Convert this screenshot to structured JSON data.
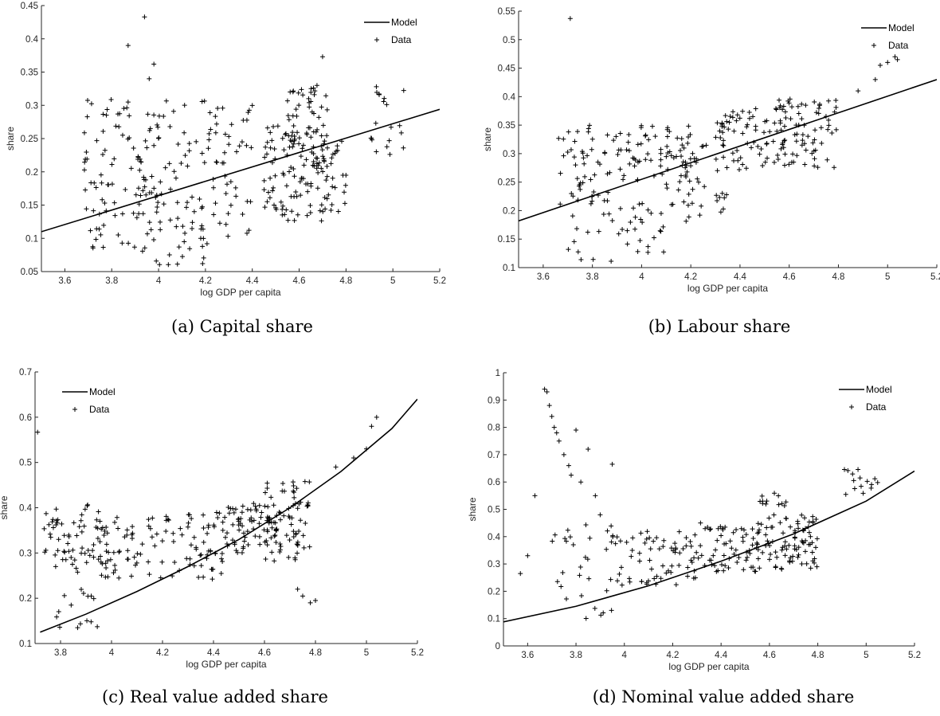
{
  "chart_data": [
    {
      "type": "scatter",
      "caption": "(a) Capital share",
      "xlabel": "log GDP per capita",
      "ylabel": "share",
      "xlim": [
        3.5,
        5.2
      ],
      "ylim": [
        0.05,
        0.45
      ],
      "xticks": [
        3.6,
        3.8,
        4,
        4.2,
        4.4,
        4.6,
        4.8,
        5,
        5.2
      ],
      "yticks": [
        0.05,
        0.1,
        0.15,
        0.2,
        0.25,
        0.3,
        0.35,
        0.4,
        0.45
      ],
      "legend": {
        "position": "top-right",
        "entries": [
          "Model",
          "Data"
        ]
      },
      "series": [
        {
          "name": "Model",
          "kind": "line",
          "x": [
            3.5,
            5.2
          ],
          "y": [
            0.11,
            0.294
          ]
        },
        {
          "name": "Data",
          "kind": "scatter",
          "marker": "+",
          "clusters": [
            {
              "x": [
                3.68,
                3.8
              ],
              "y": [
                0.07,
                0.31
              ],
              "n": 40
            },
            {
              "x": [
                3.8,
                3.98
              ],
              "y": [
                0.08,
                0.3
              ],
              "n": 60
            },
            {
              "x": [
                3.98,
                4.2
              ],
              "y": [
                0.06,
                0.31
              ],
              "n": 70
            },
            {
              "x": [
                4.2,
                4.4
              ],
              "y": [
                0.09,
                0.3
              ],
              "n": 50
            },
            {
              "x": [
                4.45,
                4.62
              ],
              "y": [
                0.12,
                0.27
              ],
              "n": 60
            },
            {
              "x": [
                4.55,
                4.72
              ],
              "y": [
                0.19,
                0.33
              ],
              "n": 70
            },
            {
              "x": [
                4.62,
                4.8
              ],
              "y": [
                0.12,
                0.26
              ],
              "n": 50
            },
            {
              "x": [
                4.9,
                5.05
              ],
              "y": [
                0.22,
                0.33
              ],
              "n": 20
            }
          ],
          "points": [
            [
              3.87,
              0.39
            ],
            [
              3.94,
              0.433
            ],
            [
              3.96,
              0.34
            ],
            [
              3.98,
              0.362
            ],
            [
              4.7,
              0.373
            ],
            [
              3.87,
              0.305
            ]
          ]
        }
      ]
    },
    {
      "type": "scatter",
      "caption": "(b) Labour share",
      "xlabel": "log GDP per capita",
      "ylabel": "share",
      "xlim": [
        3.5,
        5.2
      ],
      "ylim": [
        0.1,
        0.55
      ],
      "xticks": [
        3.6,
        3.8,
        4,
        4.2,
        4.4,
        4.6,
        4.8,
        5,
        5.2
      ],
      "yticks": [
        0.1,
        0.15,
        0.2,
        0.25,
        0.3,
        0.35,
        0.4,
        0.45,
        0.5,
        0.55
      ],
      "legend": {
        "position": "top-right",
        "entries": [
          "Model",
          "Data"
        ]
      },
      "series": [
        {
          "name": "Model",
          "kind": "line",
          "x": [
            3.5,
            5.2
          ],
          "y": [
            0.182,
            0.43
          ]
        },
        {
          "name": "Data",
          "kind": "scatter",
          "marker": "+",
          "clusters": [
            {
              "x": [
                3.66,
                3.9
              ],
              "y": [
                0.21,
                0.35
              ],
              "n": 50
            },
            {
              "x": [
                3.9,
                4.2
              ],
              "y": [
                0.25,
                0.35
              ],
              "n": 60
            },
            {
              "x": [
                3.7,
                4.1
              ],
              "y": [
                0.11,
                0.22
              ],
              "n": 40
            },
            {
              "x": [
                4.1,
                4.35
              ],
              "y": [
                0.18,
                0.32
              ],
              "n": 50
            },
            {
              "x": [
                4.3,
                4.6
              ],
              "y": [
                0.27,
                0.38
              ],
              "n": 70
            },
            {
              "x": [
                4.55,
                4.8
              ],
              "y": [
                0.27,
                0.4
              ],
              "n": 70
            }
          ],
          "points": [
            [
              3.71,
              0.537
            ],
            [
              4.88,
              0.41
            ],
            [
              4.95,
              0.43
            ],
            [
              4.97,
              0.455
            ],
            [
              5.0,
              0.46
            ],
            [
              5.03,
              0.47
            ],
            [
              5.04,
              0.465
            ]
          ]
        }
      ]
    },
    {
      "type": "scatter",
      "caption": "(c) Real value added share",
      "xlabel": "log GDP per capita",
      "ylabel": "share",
      "xlim": [
        3.7,
        5.2
      ],
      "ylim": [
        0.1,
        0.7
      ],
      "xticks": [
        3.8,
        4,
        4.2,
        4.4,
        4.6,
        4.8,
        5,
        5.2
      ],
      "yticks": [
        0.1,
        0.2,
        0.3,
        0.4,
        0.5,
        0.6,
        0.7
      ],
      "legend": {
        "position": "top-left",
        "entries": [
          "Model",
          "Data"
        ]
      },
      "series": [
        {
          "name": "Model",
          "kind": "line",
          "x": [
            3.72,
            3.9,
            4.1,
            4.3,
            4.5,
            4.7,
            4.9,
            5.1,
            5.2
          ],
          "y": [
            0.125,
            0.165,
            0.215,
            0.27,
            0.33,
            0.4,
            0.48,
            0.575,
            0.64
          ]
        },
        {
          "name": "Data",
          "kind": "scatter",
          "marker": "+",
          "clusters": [
            {
              "x": [
                3.72,
                3.95
              ],
              "y": [
                0.25,
                0.41
              ],
              "n": 60
            },
            {
              "x": [
                3.95,
                4.2
              ],
              "y": [
                0.24,
                0.38
              ],
              "n": 60
            },
            {
              "x": [
                4.2,
                4.45
              ],
              "y": [
                0.24,
                0.39
              ],
              "n": 60
            },
            {
              "x": [
                4.45,
                4.65
              ],
              "y": [
                0.3,
                0.41
              ],
              "n": 70
            },
            {
              "x": [
                4.6,
                4.78
              ],
              "y": [
                0.28,
                0.46
              ],
              "n": 70
            },
            {
              "x": [
                3.75,
                3.95
              ],
              "y": [
                0.13,
                0.22
              ],
              "n": 15
            }
          ],
          "points": [
            [
              3.71,
              0.567
            ],
            [
              4.73,
              0.22
            ],
            [
              4.75,
              0.205
            ],
            [
              4.78,
              0.19
            ],
            [
              4.8,
              0.195
            ],
            [
              4.88,
              0.49
            ],
            [
              4.95,
              0.51
            ],
            [
              5.0,
              0.53
            ],
            [
              5.02,
              0.58
            ],
            [
              5.04,
              0.6
            ]
          ]
        }
      ]
    },
    {
      "type": "scatter",
      "caption": "(d) Nominal value added share",
      "xlabel": "log GDP per capita",
      "ylabel": "share",
      "xlim": [
        3.5,
        5.2
      ],
      "ylim": [
        0,
        1
      ],
      "xticks": [
        3.6,
        3.8,
        4,
        4.2,
        4.4,
        4.6,
        4.8,
        5,
        5.2
      ],
      "yticks": [
        0,
        0.1,
        0.2,
        0.3,
        0.4,
        0.5,
        0.6,
        0.7,
        0.8,
        0.9,
        1
      ],
      "legend": {
        "position": "top-right",
        "entries": [
          "Model",
          "Data"
        ]
      },
      "series": [
        {
          "name": "Model",
          "kind": "line",
          "x": [
            3.5,
            3.8,
            4.1,
            4.4,
            4.7,
            5.0,
            5.2
          ],
          "y": [
            0.088,
            0.145,
            0.22,
            0.31,
            0.41,
            0.53,
            0.64
          ]
        },
        {
          "name": "Data",
          "kind": "scatter",
          "marker": "+",
          "clusters": [
            {
              "x": [
                3.7,
                3.95
              ],
              "y": [
                0.1,
                0.45
              ],
              "n": 30
            },
            {
              "x": [
                3.95,
                4.3
              ],
              "y": [
                0.22,
                0.42
              ],
              "n": 70
            },
            {
              "x": [
                4.3,
                4.55
              ],
              "y": [
                0.27,
                0.45
              ],
              "n": 60
            },
            {
              "x": [
                4.55,
                4.8
              ],
              "y": [
                0.28,
                0.48
              ],
              "n": 90
            },
            {
              "x": [
                4.55,
                4.7
              ],
              "y": [
                0.5,
                0.56
              ],
              "n": 12
            },
            {
              "x": [
                4.9,
                5.05
              ],
              "y": [
                0.55,
                0.65
              ],
              "n": 15
            }
          ],
          "points": [
            [
              3.57,
              0.265
            ],
            [
              3.6,
              0.33
            ],
            [
              3.63,
              0.55
            ],
            [
              3.67,
              0.94
            ],
            [
              3.68,
              0.93
            ],
            [
              3.69,
              0.88
            ],
            [
              3.7,
              0.84
            ],
            [
              3.71,
              0.8
            ],
            [
              3.72,
              0.78
            ],
            [
              3.73,
              0.75
            ],
            [
              3.75,
              0.7
            ],
            [
              3.77,
              0.66
            ],
            [
              3.8,
              0.79
            ],
            [
              3.82,
              0.6
            ],
            [
              3.85,
              0.72
            ],
            [
              3.88,
              0.55
            ],
            [
              3.9,
              0.48
            ],
            [
              3.95,
              0.665
            ],
            [
              3.78,
              0.625
            ]
          ]
        }
      ]
    }
  ]
}
